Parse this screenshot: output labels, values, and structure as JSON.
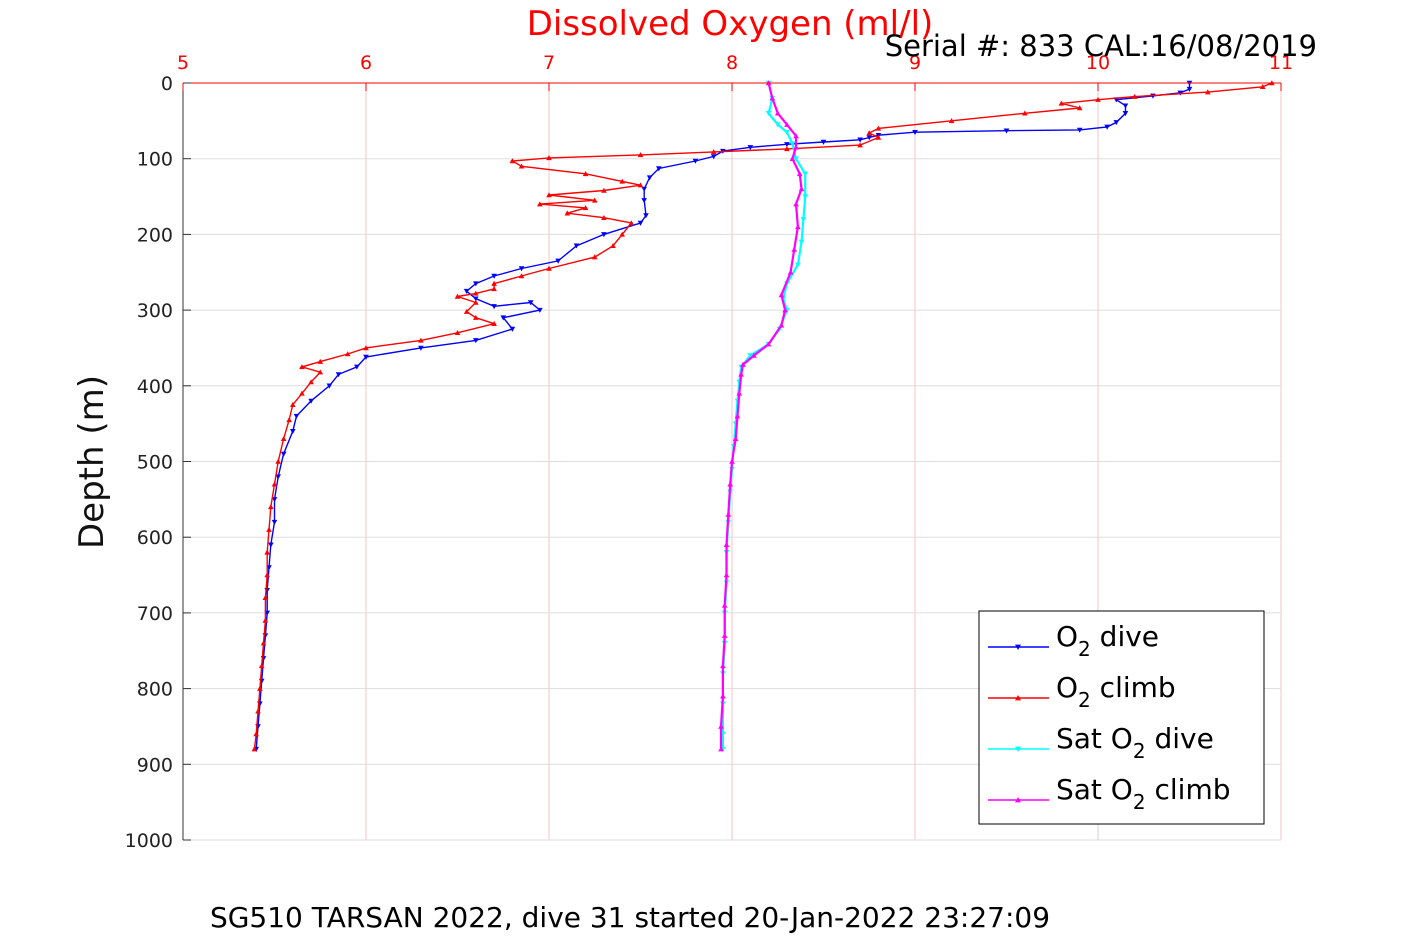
{
  "chart_data": {
    "type": "line",
    "title": "Dissolved Oxygen (ml/l)",
    "serial_label": "Serial #: 833  CAL:16/08/2019",
    "caption": "SG510 TARSAN 2022, dive 31 started 20-Jan-2022 23:27:09",
    "xlabel": "",
    "ylabel": "Depth (m)",
    "xlim": [
      5,
      11
    ],
    "ylim": [
      0,
      1000
    ],
    "y_reversed": true,
    "x_axis_position": "top",
    "x_ticks": [
      5,
      6,
      7,
      8,
      9,
      10,
      11
    ],
    "y_ticks": [
      0,
      100,
      200,
      300,
      400,
      500,
      600,
      700,
      800,
      900,
      1000
    ],
    "grid": true,
    "legend_position": "bottom-right",
    "series": [
      {
        "name": "O2 dive",
        "legend_main": "O",
        "legend_sub": "2",
        "legend_rest": " dive",
        "color": "#0000ff",
        "marker": "triangle-down",
        "points": [
          [
            10.5,
            0
          ],
          [
            10.5,
            8
          ],
          [
            10.45,
            13
          ],
          [
            10.3,
            17
          ],
          [
            10.1,
            22
          ],
          [
            10.15,
            30
          ],
          [
            10.15,
            40
          ],
          [
            10.1,
            52
          ],
          [
            10.05,
            58
          ],
          [
            9.9,
            62
          ],
          [
            9.5,
            63
          ],
          [
            9.0,
            65
          ],
          [
            8.8,
            69
          ],
          [
            8.75,
            72
          ],
          [
            8.7,
            75
          ],
          [
            8.5,
            78
          ],
          [
            8.3,
            81
          ],
          [
            8.1,
            85
          ],
          [
            7.95,
            90
          ],
          [
            7.9,
            97
          ],
          [
            7.8,
            103
          ],
          [
            7.6,
            113
          ],
          [
            7.55,
            125
          ],
          [
            7.52,
            140
          ],
          [
            7.52,
            155
          ],
          [
            7.53,
            175
          ],
          [
            7.5,
            185
          ],
          [
            7.3,
            200
          ],
          [
            7.15,
            215
          ],
          [
            7.05,
            235
          ],
          [
            6.85,
            245
          ],
          [
            6.7,
            255
          ],
          [
            6.6,
            265
          ],
          [
            6.55,
            275
          ],
          [
            6.6,
            285
          ],
          [
            6.7,
            295
          ],
          [
            6.9,
            290
          ],
          [
            6.95,
            300
          ],
          [
            6.75,
            310
          ],
          [
            6.8,
            325
          ],
          [
            6.6,
            340
          ],
          [
            6.3,
            350
          ],
          [
            6.0,
            362
          ],
          [
            5.95,
            375
          ],
          [
            5.85,
            385
          ],
          [
            5.8,
            400
          ],
          [
            5.7,
            420
          ],
          [
            5.62,
            440
          ],
          [
            5.6,
            460
          ],
          [
            5.55,
            490
          ],
          [
            5.52,
            520
          ],
          [
            5.5,
            550
          ],
          [
            5.5,
            580
          ],
          [
            5.48,
            610
          ],
          [
            5.47,
            640
          ],
          [
            5.46,
            670
          ],
          [
            5.46,
            700
          ],
          [
            5.45,
            730
          ],
          [
            5.44,
            760
          ],
          [
            5.43,
            790
          ],
          [
            5.42,
            820
          ],
          [
            5.41,
            850
          ],
          [
            5.4,
            880
          ]
        ]
      },
      {
        "name": "O2 climb",
        "legend_main": "O",
        "legend_sub": "2",
        "legend_rest": " climb",
        "color": "#ff0000",
        "marker": "triangle-up",
        "points": [
          [
            10.95,
            0
          ],
          [
            10.9,
            5
          ],
          [
            10.6,
            12
          ],
          [
            10.2,
            18
          ],
          [
            10.0,
            22
          ],
          [
            9.8,
            27
          ],
          [
            9.9,
            33
          ],
          [
            9.6,
            40
          ],
          [
            9.2,
            50
          ],
          [
            8.8,
            60
          ],
          [
            8.75,
            66
          ],
          [
            8.8,
            72
          ],
          [
            8.7,
            82
          ],
          [
            8.3,
            87
          ],
          [
            7.9,
            91
          ],
          [
            7.5,
            95
          ],
          [
            7.0,
            99
          ],
          [
            6.8,
            103
          ],
          [
            6.85,
            110
          ],
          [
            7.2,
            120
          ],
          [
            7.4,
            130
          ],
          [
            7.5,
            135
          ],
          [
            7.3,
            142
          ],
          [
            7.0,
            148
          ],
          [
            7.25,
            155
          ],
          [
            6.95,
            160
          ],
          [
            7.2,
            165
          ],
          [
            7.1,
            172
          ],
          [
            7.3,
            178
          ],
          [
            7.45,
            185
          ],
          [
            7.4,
            200
          ],
          [
            7.35,
            215
          ],
          [
            7.25,
            230
          ],
          [
            7.0,
            245
          ],
          [
            6.85,
            255
          ],
          [
            6.7,
            265
          ],
          [
            6.7,
            272
          ],
          [
            6.6,
            278
          ],
          [
            6.5,
            282
          ],
          [
            6.6,
            290
          ],
          [
            6.55,
            302
          ],
          [
            6.6,
            310
          ],
          [
            6.7,
            318
          ],
          [
            6.5,
            330
          ],
          [
            6.3,
            340
          ],
          [
            6.0,
            350
          ],
          [
            5.9,
            358
          ],
          [
            5.75,
            368
          ],
          [
            5.65,
            375
          ],
          [
            5.75,
            382
          ],
          [
            5.7,
            395
          ],
          [
            5.65,
            410
          ],
          [
            5.6,
            425
          ],
          [
            5.58,
            445
          ],
          [
            5.55,
            470
          ],
          [
            5.52,
            500
          ],
          [
            5.5,
            530
          ],
          [
            5.48,
            560
          ],
          [
            5.47,
            590
          ],
          [
            5.46,
            620
          ],
          [
            5.46,
            650
          ],
          [
            5.45,
            680
          ],
          [
            5.45,
            710
          ],
          [
            5.44,
            740
          ],
          [
            5.43,
            770
          ],
          [
            5.42,
            800
          ],
          [
            5.41,
            830
          ],
          [
            5.4,
            860
          ],
          [
            5.39,
            880
          ]
        ]
      },
      {
        "name": "Sat O2 dive",
        "legend_main": "Sat O",
        "legend_sub": "2",
        "legend_rest": " dive",
        "color": "#00ffff",
        "marker": "triangle-down",
        "points": [
          [
            8.2,
            0
          ],
          [
            8.22,
            20
          ],
          [
            8.2,
            40
          ],
          [
            8.25,
            55
          ],
          [
            8.3,
            65
          ],
          [
            8.33,
            80
          ],
          [
            8.35,
            100
          ],
          [
            8.4,
            120
          ],
          [
            8.4,
            150
          ],
          [
            8.39,
            180
          ],
          [
            8.38,
            210
          ],
          [
            8.36,
            240
          ],
          [
            8.3,
            265
          ],
          [
            8.28,
            285
          ],
          [
            8.3,
            300
          ],
          [
            8.26,
            325
          ],
          [
            8.2,
            345
          ],
          [
            8.1,
            360
          ],
          [
            8.05,
            375
          ],
          [
            8.04,
            395
          ],
          [
            8.03,
            420
          ],
          [
            8.02,
            450
          ],
          [
            8.01,
            480
          ],
          [
            8.0,
            510
          ],
          [
            7.99,
            540
          ],
          [
            7.98,
            580
          ],
          [
            7.97,
            620
          ],
          [
            7.97,
            660
          ],
          [
            7.96,
            700
          ],
          [
            7.96,
            740
          ],
          [
            7.95,
            780
          ],
          [
            7.95,
            820
          ],
          [
            7.95,
            860
          ],
          [
            7.95,
            880
          ]
        ]
      },
      {
        "name": "Sat O2 climb",
        "legend_main": "Sat O",
        "legend_sub": "2",
        "legend_rest": " climb",
        "color": "#ff00ff",
        "marker": "triangle-up",
        "points": [
          [
            8.2,
            0
          ],
          [
            8.22,
            20
          ],
          [
            8.25,
            40
          ],
          [
            8.3,
            55
          ],
          [
            8.35,
            70
          ],
          [
            8.35,
            85
          ],
          [
            8.33,
            100
          ],
          [
            8.37,
            120
          ],
          [
            8.38,
            140
          ],
          [
            8.35,
            160
          ],
          [
            8.36,
            190
          ],
          [
            8.34,
            220
          ],
          [
            8.32,
            250
          ],
          [
            8.27,
            280
          ],
          [
            8.29,
            300
          ],
          [
            8.27,
            320
          ],
          [
            8.2,
            345
          ],
          [
            8.12,
            360
          ],
          [
            8.06,
            372
          ],
          [
            8.05,
            385
          ],
          [
            8.04,
            410
          ],
          [
            8.03,
            440
          ],
          [
            8.02,
            470
          ],
          [
            8.0,
            500
          ],
          [
            7.99,
            530
          ],
          [
            7.98,
            570
          ],
          [
            7.97,
            610
          ],
          [
            7.97,
            650
          ],
          [
            7.96,
            690
          ],
          [
            7.96,
            730
          ],
          [
            7.95,
            770
          ],
          [
            7.95,
            810
          ],
          [
            7.94,
            850
          ],
          [
            7.94,
            880
          ]
        ]
      }
    ]
  }
}
